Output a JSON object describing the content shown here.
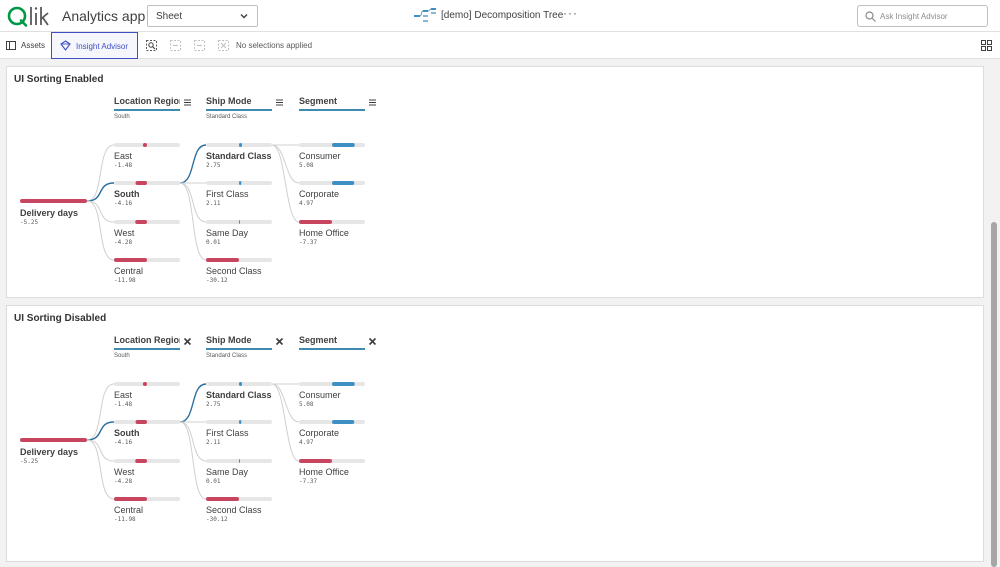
{
  "header": {
    "app_title": "Analytics app",
    "sheet_selector": "Sheet",
    "sheet_title": "[demo] Decomposition Tree",
    "more_label": "···",
    "search_placeholder": "Ask Insight Advisor"
  },
  "toolbar": {
    "assets_label": "Assets",
    "insight_advisor_label": "Insight Advisor",
    "selections_text": "No selections applied"
  },
  "colors": {
    "accent": "#3f4fc2",
    "negative_bar": "#c8455f",
    "positive_bar": "#3d8fc4",
    "bar_track": "#e6e6e6",
    "link": "#2b6fa0"
  },
  "panels": [
    {
      "title": "UI Sorting Enabled",
      "column_action_icon": "menu-icon",
      "columns": [
        {
          "title": "Location Region",
          "selected": "South"
        },
        {
          "title": "Ship Mode",
          "selected": "Standard Class"
        },
        {
          "title": "Segment",
          "selected": ""
        }
      ],
      "root": {
        "label": "Delivery days",
        "value": "-5.25"
      },
      "regions": [
        {
          "label": "East",
          "value": "-1.48"
        },
        {
          "label": "South",
          "value": "-4.16"
        },
        {
          "label": "West",
          "value": "-4.28"
        },
        {
          "label": "Central",
          "value": "-11.98"
        }
      ],
      "ship_modes": [
        {
          "label": "Standard Class",
          "value": "2.75"
        },
        {
          "label": "First Class",
          "value": "2.11"
        },
        {
          "label": "Same Day",
          "value": "0.01"
        },
        {
          "label": "Second Class",
          "value": "-30.12"
        }
      ],
      "segments": [
        {
          "label": "Consumer",
          "value": "5.08"
        },
        {
          "label": "Corporate",
          "value": "4.97"
        },
        {
          "label": "Home Office",
          "value": "-7.37"
        }
      ]
    },
    {
      "title": "UI Sorting Disabled",
      "column_action_icon": "close-icon",
      "columns": [
        {
          "title": "Location Region",
          "selected": "South"
        },
        {
          "title": "Ship Mode",
          "selected": "Standard Class"
        },
        {
          "title": "Segment",
          "selected": ""
        }
      ],
      "root": {
        "label": "Delivery days",
        "value": "-5.25"
      },
      "regions": [
        {
          "label": "East",
          "value": "-1.48"
        },
        {
          "label": "South",
          "value": "-4.16"
        },
        {
          "label": "West",
          "value": "-4.28"
        },
        {
          "label": "Central",
          "value": "-11.98"
        }
      ],
      "ship_modes": [
        {
          "label": "Standard Class",
          "value": "2.75"
        },
        {
          "label": "First Class",
          "value": "2.11"
        },
        {
          "label": "Same Day",
          "value": "0.01"
        },
        {
          "label": "Second Class",
          "value": "-30.12"
        }
      ],
      "segments": [
        {
          "label": "Consumer",
          "value": "5.08"
        },
        {
          "label": "Corporate",
          "value": "4.97"
        },
        {
          "label": "Home Office",
          "value": "-7.37"
        }
      ]
    }
  ]
}
